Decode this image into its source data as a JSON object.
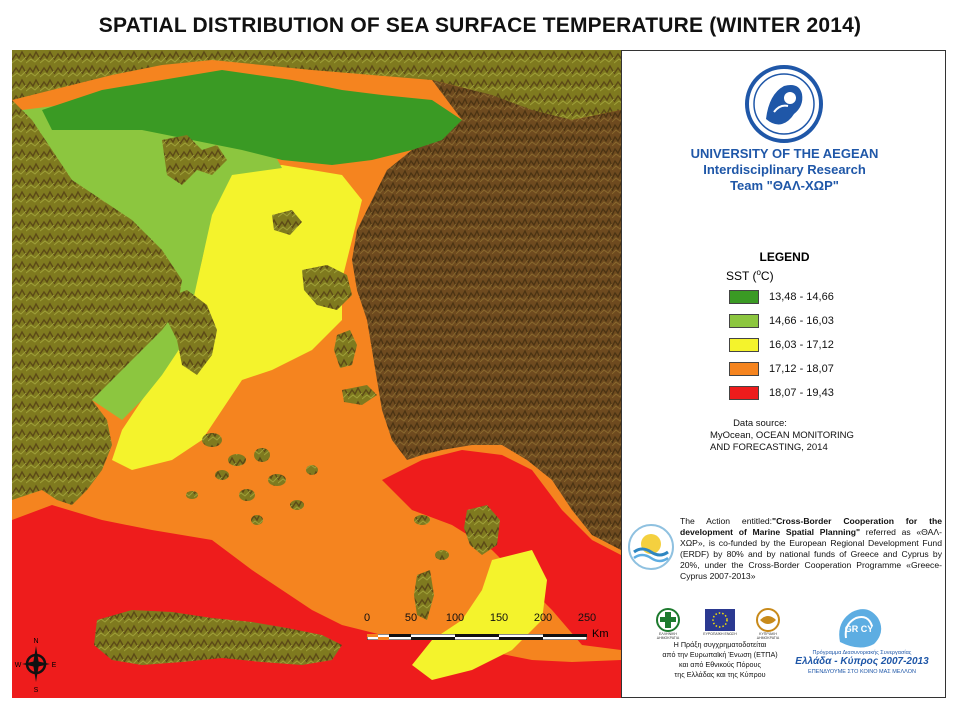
{
  "title": "SPATIAL DISTRIBUTION OF SEA SURFACE TEMPERATURE (WINTER 2014)",
  "university": {
    "line1": "UNIVERSITY OF THE AEGEAN",
    "line2": "Interdisciplinary Research",
    "line3": "Team \"ΘΑΛ-ΧΩΡ\""
  },
  "legend": {
    "title": "LEGEND",
    "subtitle_prefix": "SST (",
    "subtitle_sup": "o",
    "subtitle_suffix": "C)",
    "items": [
      {
        "label": "13,48 - 14,66",
        "color": "#3a9a24"
      },
      {
        "label": "14,66 - 16,03",
        "color": "#8cc63f"
      },
      {
        "label": "16,03 - 17,12",
        "color": "#f4f32c"
      },
      {
        "label": "17,12 - 18,07",
        "color": "#f5841f"
      },
      {
        "label": "18,07 - 19,43",
        "color": "#ee1c1c"
      }
    ]
  },
  "data_source": {
    "label": "Data source:",
    "line1": "MyOcean, OCEAN MONITORING",
    "line2": "AND FORECASTING, 2014"
  },
  "action": {
    "intro": "The Action entitled:",
    "bold": "\"Cross-Border Cooperation for the development of Marine Spatial Planning\"",
    "rest": " referred as «ΘΑΛ-ΧΩΡ», is co-funded by the European Regional Development Fund (ERDF) by 80% and by national funds of Greece and Cyprus by 20%, under the Cross-Border Cooperation Programme «Greece-Cyprus 2007-2013»"
  },
  "logos": {
    "greece_caption": "ΕΛΛΗΝΙΚΗ ΔΗΜΟΚΡΑΤΙΑ",
    "eu_caption": "ΕΥΡΩΠΑΪΚΗ ΕΝΩΣΗ",
    "cyprus_caption": "ΚΥΠΡΙΑΚΗ ΔΗΜΟΚΡΑΤΙΑ",
    "espa_line1": "Η Πράξη συγχρηματοδοτείται",
    "espa_line2": "από την Ευρωπαϊκή Ένωση (ΕΤΠΑ)",
    "espa_line3": "και από Εθνικούς Πόρους",
    "espa_line4": "της Ελλάδας και της Κύπρου",
    "grcy_text": "GR CY",
    "programme_small": "Πρόγραμμα Διασυνοριακής Συνεργασίας",
    "programme_big": "Ελλάδα - Κύπρος 2007-2013",
    "programme_motto": "ΕΠΕΝΔΥΟΥΜΕ ΣΤΟ ΚΟΙΝΟ ΜΑΣ ΜΕΛΛΟΝ"
  },
  "scale": {
    "ticks": [
      "0",
      "50",
      "100",
      "150",
      "200",
      "250"
    ],
    "unit": "Km"
  },
  "compass": {
    "n": "N",
    "s": "S",
    "e": "E",
    "w": "W"
  },
  "colors": {
    "sea_coldest": "#3a9a24",
    "sea_cold": "#8cc63f",
    "sea_mid": "#f4f32c",
    "sea_warm": "#f5841f",
    "sea_hot": "#ee1c1c",
    "land_low": "#8a8a1a",
    "land_high": "#6b4a1e",
    "accent_blue": "#1f57a8"
  }
}
